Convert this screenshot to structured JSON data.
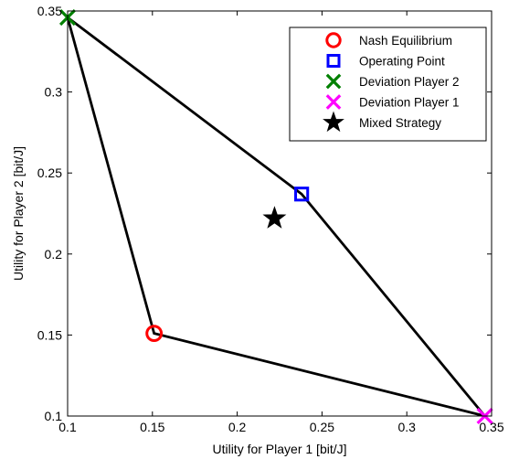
{
  "chart_data": {
    "type": "scatter",
    "title": "",
    "xlabel": "Utility for Player 1 [bit/J]",
    "ylabel": "Utility for Player 2 [bit/J]",
    "xlim": [
      0.1,
      0.35
    ],
    "ylim": [
      0.1,
      0.35
    ],
    "xticks": [
      0.1,
      0.15,
      0.2,
      0.25,
      0.3,
      0.35
    ],
    "yticks": [
      0.1,
      0.15,
      0.2,
      0.25,
      0.3,
      0.35
    ],
    "xtick_labels": [
      "0.1",
      "0.15",
      "0.2",
      "0.25",
      "0.3",
      "0.35"
    ],
    "ytick_labels": [
      "0.1",
      "0.15",
      "0.2",
      "0.25",
      "0.3",
      "0.35"
    ],
    "grid": false,
    "legend_position": "top-right",
    "boundary": {
      "points": [
        [
          0.1,
          0.346
        ],
        [
          0.151,
          0.151
        ],
        [
          0.346,
          0.1
        ],
        [
          0.238,
          0.237
        ],
        [
          0.1,
          0.346
        ]
      ],
      "color": "#000000"
    },
    "series": [
      {
        "name": "Nash Equilibrium",
        "marker": "circle",
        "color": "#ff0000",
        "points": [
          [
            0.151,
            0.151
          ]
        ]
      },
      {
        "name": "Operating Point",
        "marker": "square",
        "color": "#0000ff",
        "points": [
          [
            0.238,
            0.237
          ]
        ]
      },
      {
        "name": "Deviation Player 2",
        "marker": "x",
        "color": "#008000",
        "points": [
          [
            0.1,
            0.346
          ]
        ]
      },
      {
        "name": "Deviation Player 1",
        "marker": "x",
        "color": "#ff00ff",
        "points": [
          [
            0.346,
            0.1
          ]
        ]
      },
      {
        "name": "Mixed Strategy",
        "marker": "star",
        "color": "#000000",
        "points": [
          [
            0.222,
            0.222
          ]
        ]
      }
    ]
  }
}
